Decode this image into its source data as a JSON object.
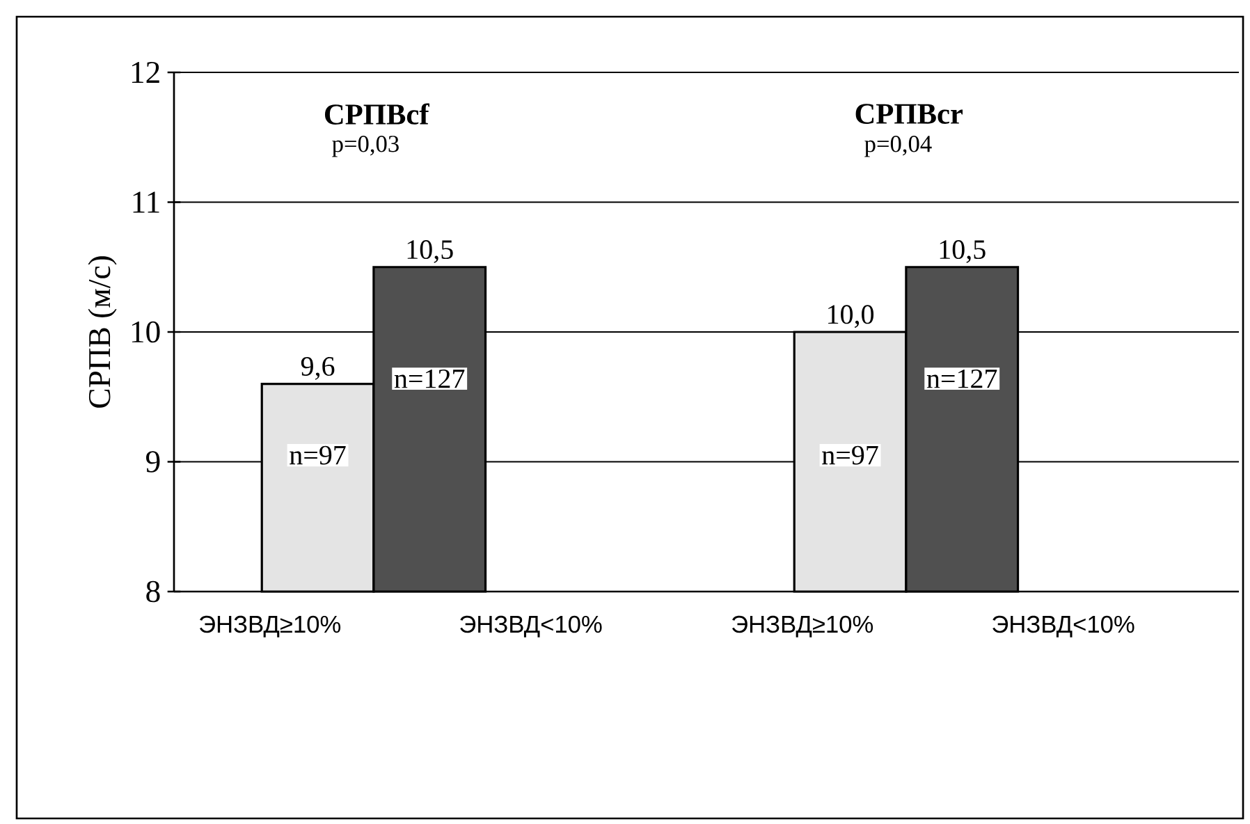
{
  "chart_data": {
    "type": "bar",
    "categories": [
      "ЭНЗВД≥10%",
      "ЭНЗВД<10%",
      "ЭНЗВД≥10%",
      "ЭНЗВД<10%"
    ],
    "values": [
      9.6,
      10.5,
      10.0,
      10.5
    ],
    "colors": [
      "#e4e4e4",
      "#505050",
      "#e4e4e4",
      "#505050"
    ],
    "value_labels": [
      "9,6",
      "10,5",
      "10,0",
      "10,5"
    ],
    "ylabel": "СРПВ (м/с)",
    "ylim": [
      8,
      12
    ],
    "yticks": [
      8,
      9,
      10,
      11,
      12
    ],
    "grid": "y",
    "annotations": [
      "СРПВcf",
      "p=0,03",
      "СРПВcr",
      "p=0,04",
      "n=97",
      "n=127",
      "n=97",
      "n=127"
    ]
  }
}
